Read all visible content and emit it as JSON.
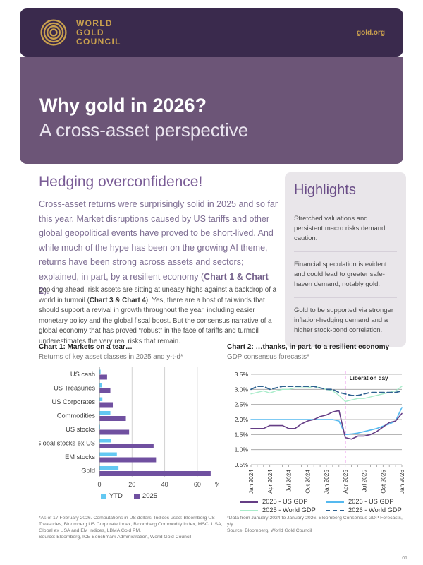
{
  "page_number": "01",
  "header": {
    "logo_lines": [
      "WORLD",
      "GOLD",
      "COUNCIL"
    ],
    "site_link": "gold.org"
  },
  "banner": {
    "title": "Why gold in 2026?",
    "subtitle": "A cross-asset perspective"
  },
  "article": {
    "heading": "Hedging overconfidence!",
    "lead_pre": "Cross-asset returns were surprisingly solid in 2025 and so far this year. Market disruptions caused by US tariffs and other global geopolitical events have proved to be short-lived. And while much of the hype has been on the growing AI theme, returns have been strong across assets and sectors; explained, in part, by a resilient economy (",
    "lead_bold": "Chart 1 & Chart 2",
    "lead_post": ").",
    "para2_pre": "Looking ahead, risk assets are sitting at uneasy highs against a backdrop of a world in turmoil (",
    "para2_bold": "Chart 3 & Chart 4",
    "para2_post": "). Yes, there are a host of tailwinds that should support a revival in growth throughout the year, including easier monetary policy and the global fiscal boost. But the consensus narrative of a global economy that has proved “robust” in the face of tariffs and turmoil underestimates the very real risks that remain."
  },
  "highlights": {
    "title": "Highlights",
    "items": [
      "Stretched valuations and persistent macro risks demand caution.",
      "Financial speculation is evident and could lead to greater safe-haven demand, notably gold.",
      "Gold to be supported via stronger inflation-hedging demand and a higher stock-bond correlation."
    ]
  },
  "chart1": {
    "title": "Chart 1: Markets on a tear…",
    "subtitle": "Returns of key asset classes in 2025 and y-t-d*",
    "footnote": "*As of 17 February 2026. Computations in US dollars. Indices used: Bloomberg US Treasuries, Bloomberg US Corporate Index, Bloomberg Commodity Index, MSCI USA, Global ex USA and EM Indices, LBMA Gold PM.",
    "source": "Source: Bloomberg, ICE Benchmark Administration, World Gold Council"
  },
  "chart2": {
    "title": "Chart 2: …thanks, in part, to a resilient economy",
    "subtitle": "GDP consensus forecasts*",
    "footnote": "*Data from January 2024 to January 2026. Bloomberg Consensus GDP Forecasts, y/y.",
    "source": "Source: Bloomberg, World Gold Council"
  },
  "colors": {
    "header_bg": "#3a2a4d",
    "gold": "#c9a04e",
    "banner_bg": "#6c5577",
    "accent_purple": "#7a5c96",
    "highlights_bg": "#e9e6ea",
    "bar_ytd_blue": "#63c8f2",
    "bar_2025_purple": "#7050a0",
    "line_us_2025": "#653d85",
    "line_us_2026": "#55b9ef",
    "line_world_2025": "#a9ecca",
    "line_world_2026": "#2f6290",
    "liberation_line": "#e66ae6"
  },
  "chart_data": [
    {
      "type": "bar",
      "orientation": "horizontal",
      "title": "Chart 1: Markets on a tear…",
      "unit": "%",
      "xmax": 70,
      "xticks": [
        0,
        20,
        40,
        60
      ],
      "categories": [
        "US cash",
        "US Treasuries",
        "US Corporates",
        "Commodities",
        "US stocks",
        "Global stocks ex US",
        "EM stocks",
        "Gold"
      ],
      "series": [
        {
          "name": "YTD",
          "color": "#63c8f2",
          "values": [
            0.5,
            1.2,
            1.6,
            6.5,
            0.2,
            7,
            10.5,
            11.5
          ]
        },
        {
          "name": "2025",
          "color": "#7050a0",
          "values": [
            4.5,
            6.5,
            8,
            16,
            18,
            33,
            34.5,
            68
          ]
        }
      ]
    },
    {
      "type": "line",
      "title": "Chart 2: …thanks, in part, to a resilient economy",
      "x_count": 25,
      "xtick_labels": [
        "Jan 2024",
        "Apr 2024",
        "Jul 2024",
        "Oct 2024",
        "Jan 2025",
        "Apr 2025",
        "Jul 2025",
        "Oct 2025",
        "Jan 2026"
      ],
      "xtick_index": [
        0,
        3,
        6,
        9,
        12,
        15,
        18,
        21,
        24
      ],
      "ylim": [
        0.5,
        3.5
      ],
      "yticks": [
        3.5,
        3.0,
        2.5,
        2.0,
        1.5,
        1.0,
        0.5
      ],
      "annotation": {
        "label": "Liberation day",
        "index": 15,
        "color": "#e66ae6"
      },
      "legend_order": [
        3,
        2,
        0,
        1
      ],
      "series": [
        {
          "name": "2025 - World GDP",
          "color": "#a9ecca",
          "width": 1.4,
          "values": [
            2.85,
            2.9,
            2.95,
            2.88,
            2.95,
            3.0,
            3.0,
            3.05,
            3.05,
            3.05,
            3.1,
            3.05,
            3.0,
            2.95,
            2.8,
            2.6,
            2.65,
            2.7,
            2.7,
            2.75,
            2.8,
            2.85,
            2.9,
            2.95,
            3.1
          ]
        },
        {
          "name": "2026 - World GDP",
          "color": "#2f6290",
          "width": 1.8,
          "dash": "7 4",
          "values": [
            3.0,
            3.1,
            3.1,
            3.0,
            3.05,
            3.1,
            3.1,
            3.1,
            3.1,
            3.1,
            3.1,
            3.05,
            3.0,
            3.0,
            2.9,
            2.85,
            2.8,
            2.8,
            2.85,
            2.9,
            2.9,
            2.9,
            2.9,
            2.9,
            2.95
          ]
        },
        {
          "name": "2026 - US GDP",
          "color": "#55b9ef",
          "width": 1.6,
          "values": [
            2.0,
            2.0,
            2.0,
            2.0,
            2.0,
            2.0,
            2.0,
            2.0,
            2.0,
            2.0,
            2.0,
            2.0,
            2.0,
            2.0,
            1.95,
            1.5,
            1.52,
            1.55,
            1.6,
            1.65,
            1.7,
            1.78,
            1.85,
            1.95,
            2.4
          ]
        },
        {
          "name": "2025 - US GDP",
          "color": "#653d85",
          "width": 1.6,
          "values": [
            1.7,
            1.7,
            1.7,
            1.8,
            1.8,
            1.8,
            1.7,
            1.7,
            1.85,
            1.95,
            2.0,
            2.1,
            2.15,
            2.25,
            2.3,
            1.4,
            1.35,
            1.45,
            1.45,
            1.5,
            1.6,
            1.75,
            1.9,
            1.95,
            2.2
          ]
        }
      ]
    }
  ]
}
